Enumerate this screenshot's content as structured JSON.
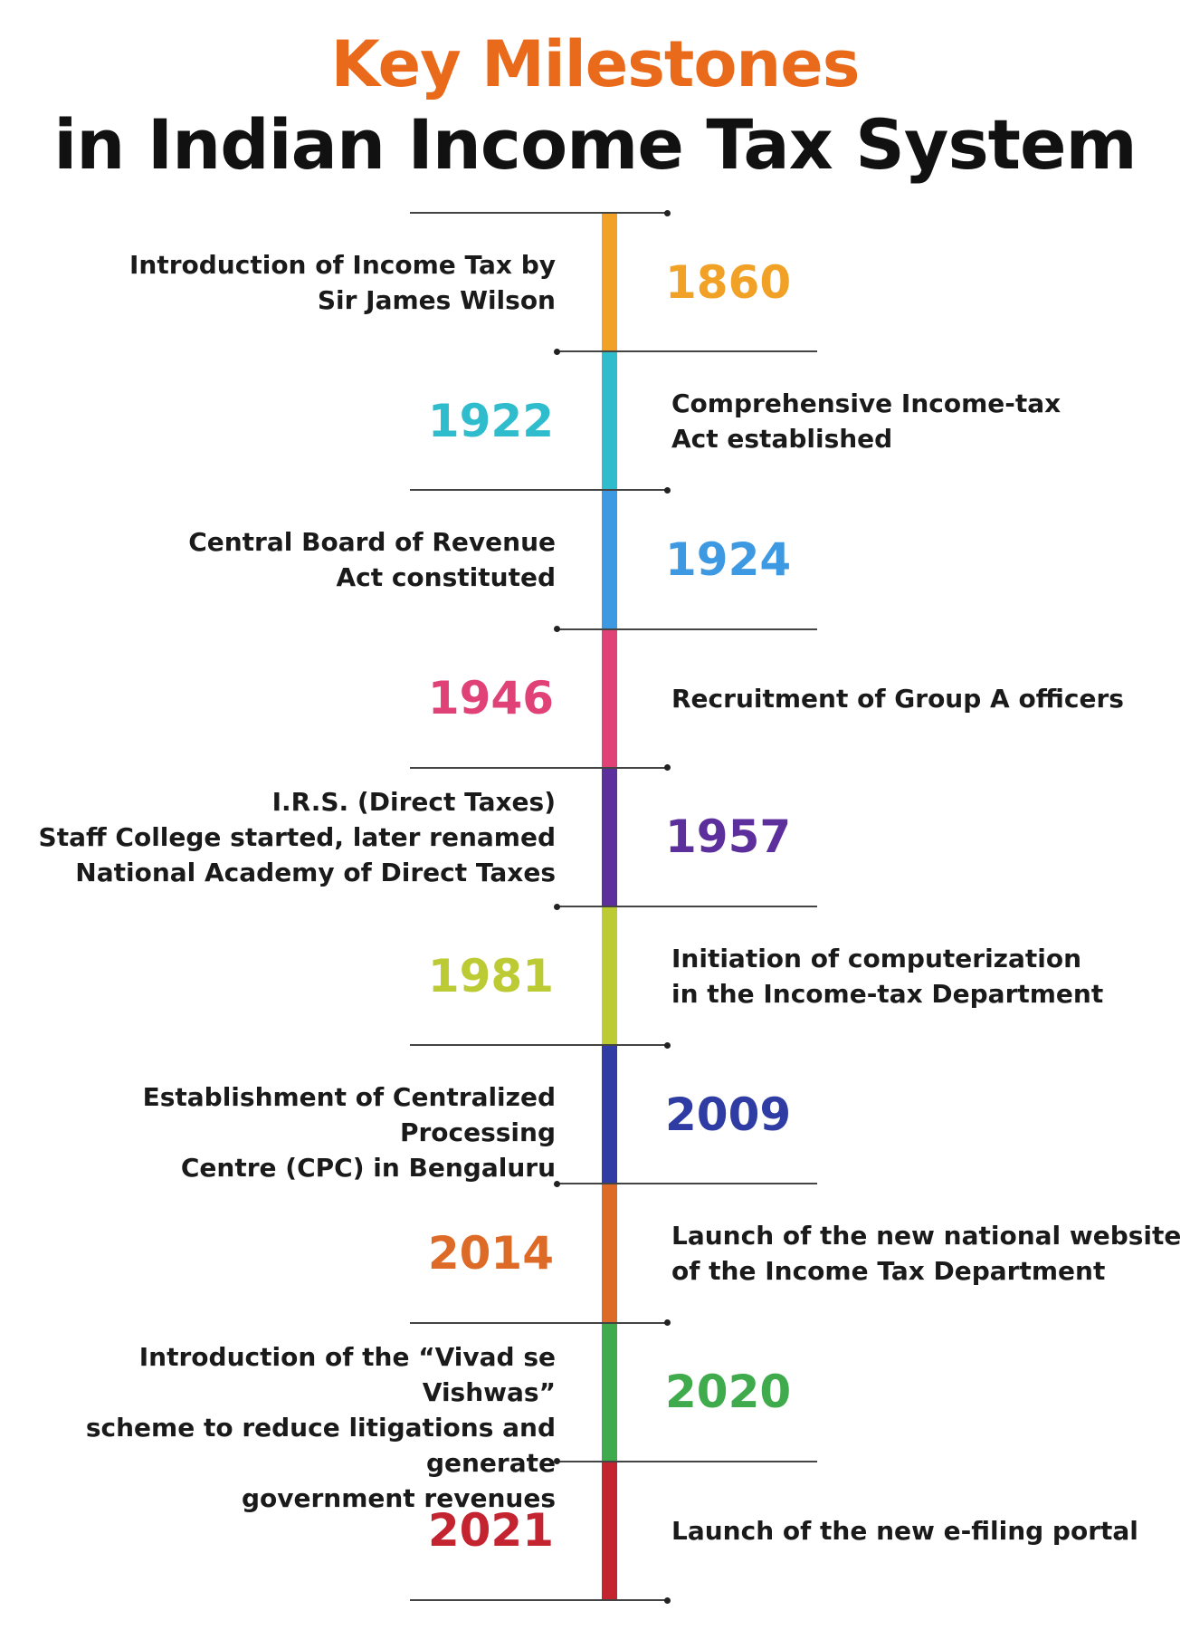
{
  "title": {
    "line1": "Key Milestones",
    "line2": "in Indian Income Tax System"
  },
  "milestones": [
    {
      "year": "1860",
      "color": "#f0a126",
      "desc": [
        "Introduction of Income Tax by",
        "Sir James Wilson"
      ],
      "year_side": "right"
    },
    {
      "year": "1922",
      "color": "#2fbccc",
      "desc": [
        "Comprehensive Income-tax",
        "Act established"
      ],
      "year_side": "left"
    },
    {
      "year": "1924",
      "color": "#3d9ae2",
      "desc": [
        "Central Board of Revenue",
        "Act constituted"
      ],
      "year_side": "right"
    },
    {
      "year": "1946",
      "color": "#e04177",
      "desc": [
        "Recruitment of Group A officers"
      ],
      "year_side": "left"
    },
    {
      "year": "1957",
      "color": "#5c2f9d",
      "desc": [
        "I.R.S. (Direct Taxes)",
        "Staff College started, later renamed",
        "National Academy of Direct Taxes"
      ],
      "year_side": "right"
    },
    {
      "year": "1981",
      "color": "#bccb33",
      "desc": [
        "Initiation of computerization",
        "in the Income-tax Department"
      ],
      "year_side": "left"
    },
    {
      "year": "2009",
      "color": "#2f3ca3",
      "desc": [
        "Establishment of Centralized Processing",
        "Centre (CPC) in Bengaluru"
      ],
      "year_side": "right"
    },
    {
      "year": "2014",
      "color": "#dd6b27",
      "desc": [
        "Launch of the new national website",
        "of the Income Tax Department"
      ],
      "year_side": "left"
    },
    {
      "year": "2020",
      "color": "#3fab4c",
      "desc": [
        "Introduction of the “Vivad se Vishwas”",
        "scheme to reduce litigations and generate",
        "government revenues"
      ],
      "year_side": "right"
    },
    {
      "year": "2021",
      "color": "#c42330",
      "desc": [
        "Launch of the new e-filing portal"
      ],
      "year_side": "left"
    }
  ]
}
